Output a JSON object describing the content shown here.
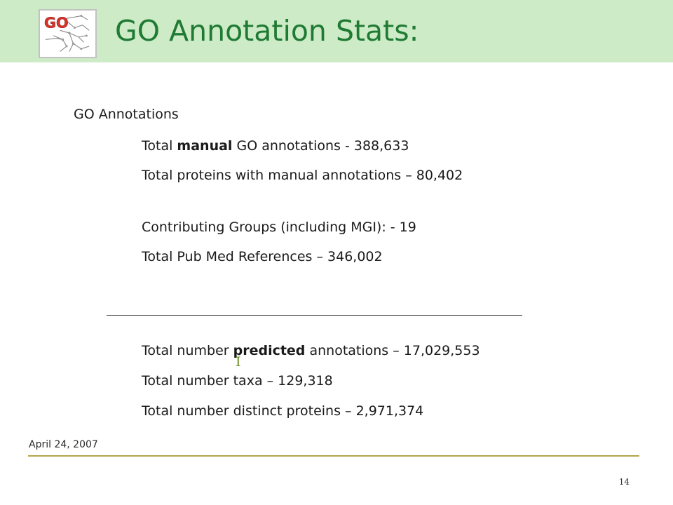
{
  "header": {
    "title": "GO Annotation Stats:",
    "logo_text": "GO",
    "background_color": "#cdebc6",
    "title_color": "#1f7a34"
  },
  "content": {
    "section_heading": "GO Annotations",
    "manual": {
      "line1": {
        "prefix": "Total ",
        "emphasis": "manual",
        "suffix": " GO annotations  - 388,633"
      },
      "line2": "Total proteins with manual annotations – 80,402",
      "line3": "Contributing Groups (including MGI):  - 19",
      "line4": "Total Pub Med References – 346,002"
    },
    "predicted": {
      "line1": {
        "prefix": "Total number ",
        "emphasis": "predicted",
        "suffix": " annotations – 17,029,553"
      },
      "line2": "Total number taxa – 129,318",
      "line3": "Total number distinct proteins – 2,971,374"
    }
  },
  "footer": {
    "date": "April 24, 2007",
    "slide_number": "14",
    "rule_color": "#b5a64a"
  }
}
